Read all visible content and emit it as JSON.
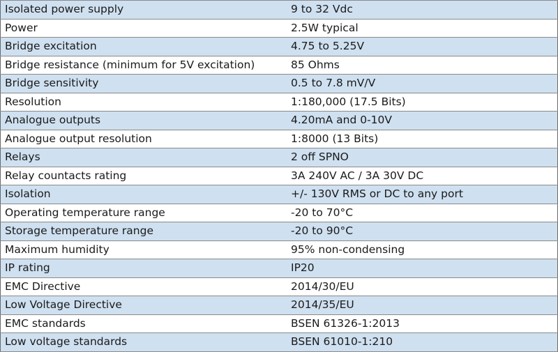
{
  "specs": [
    {
      "parameter": "Isolated power supply",
      "value": "9 to 32 Vdc"
    },
    {
      "parameter": "Power",
      "value": "2.5W typical"
    },
    {
      "parameter": "Bridge excitation",
      "value": "4.75 to 5.25V"
    },
    {
      "parameter": "Bridge resistance (minimum for 5V excitation)",
      "value": "85 Ohms"
    },
    {
      "parameter": "Bridge sensitivity",
      "value": "0.5 to 7.8 mV/V"
    },
    {
      "parameter": "Resolution",
      "value": "1:180,000 (17.5 Bits)"
    },
    {
      "parameter": "Analogue outputs",
      "value": "4.20mA and 0-10V"
    },
    {
      "parameter": "Analogue output resolution",
      "value": "1:8000 (13 Bits)"
    },
    {
      "parameter": "Relays",
      "value": "2 off SPNO"
    },
    {
      "parameter": "Relay countacts rating",
      "value": "3A 240V AC / 3A 30V DC"
    },
    {
      "parameter": "Isolation",
      "value": "+/- 130V RMS or DC to any port"
    },
    {
      "parameter": "Operating temperature range",
      "value": "-20 to 70°C"
    },
    {
      "parameter": "Storage temperature range",
      "value": "-20 to 90°C"
    },
    {
      "parameter": "Maximum humidity",
      "value": "95% non-condensing"
    },
    {
      "parameter": "IP rating",
      "value": "IP20"
    },
    {
      "parameter": "EMC Directive",
      "value": "2014/30/EU"
    },
    {
      "parameter": "Low Voltage Directive",
      "value": "2014/35/EU"
    },
    {
      "parameter": "EMC standards",
      "value": "BSEN 61326-1:2013"
    },
    {
      "parameter": "Low voltage standards",
      "value": "BSEN 61010-1:210"
    }
  ],
  "colors": {
    "row_band": "#cfe0f0",
    "row_plain": "#ffffff",
    "border": "#8a8a8a"
  }
}
